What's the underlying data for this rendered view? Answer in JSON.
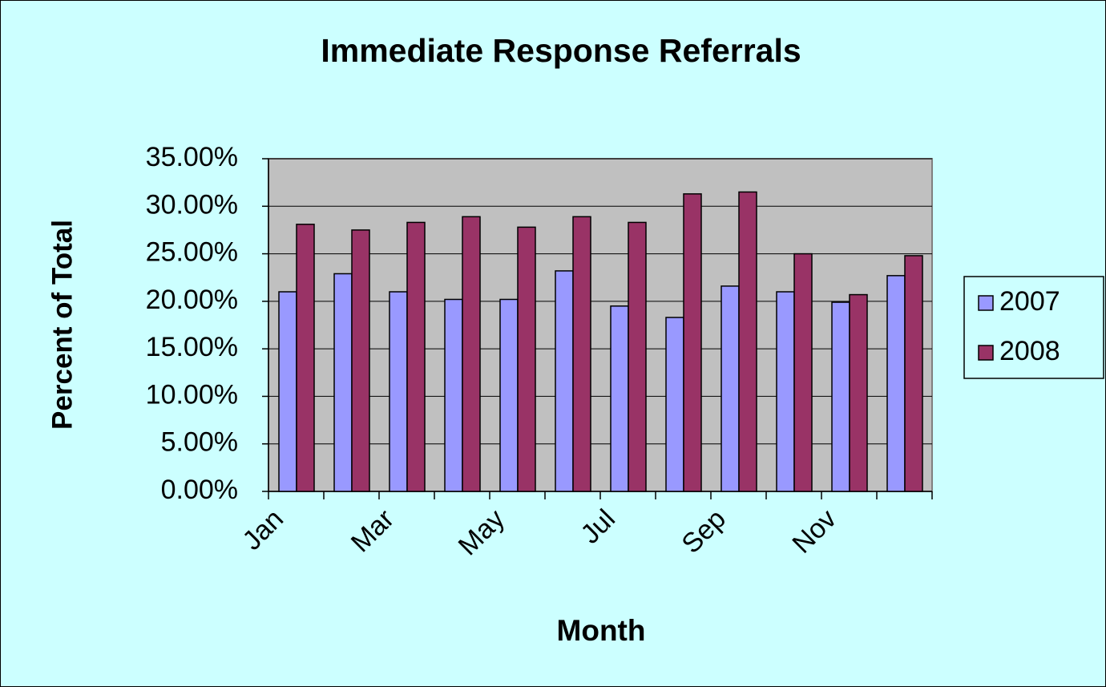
{
  "chart_data": {
    "type": "bar",
    "title": "Immediate Response Referrals",
    "x_label": "Month",
    "y_label": "Percent of Total",
    "categories": [
      "Jan",
      null,
      "Mar",
      null,
      "May",
      null,
      "Jul",
      null,
      "Sep",
      null,
      "Nov",
      null
    ],
    "series": [
      {
        "name": "2007",
        "color": "#9999ff",
        "values": [
          21.0,
          22.9,
          21.0,
          20.2,
          20.2,
          23.2,
          19.5,
          18.3,
          21.6,
          21.0,
          19.9,
          22.7
        ]
      },
      {
        "name": "2008",
        "color": "#993366",
        "values": [
          28.1,
          27.5,
          28.3,
          28.9,
          27.8,
          28.9,
          28.3,
          31.3,
          31.5,
          25.0,
          20.7,
          24.8
        ]
      }
    ],
    "ylim": [
      0,
      35
    ],
    "yticks": [
      {
        "value": 0,
        "label": "0.00%"
      },
      {
        "value": 5,
        "label": "5.00%"
      },
      {
        "value": 10,
        "label": "10.00%"
      },
      {
        "value": 15,
        "label": "15.00%"
      },
      {
        "value": 20,
        "label": "20.00%"
      },
      {
        "value": 25,
        "label": "25.00%"
      },
      {
        "value": 30,
        "label": "30.00%"
      },
      {
        "value": 35,
        "label": "35.00%"
      }
    ],
    "grid": true,
    "legend": "right"
  }
}
